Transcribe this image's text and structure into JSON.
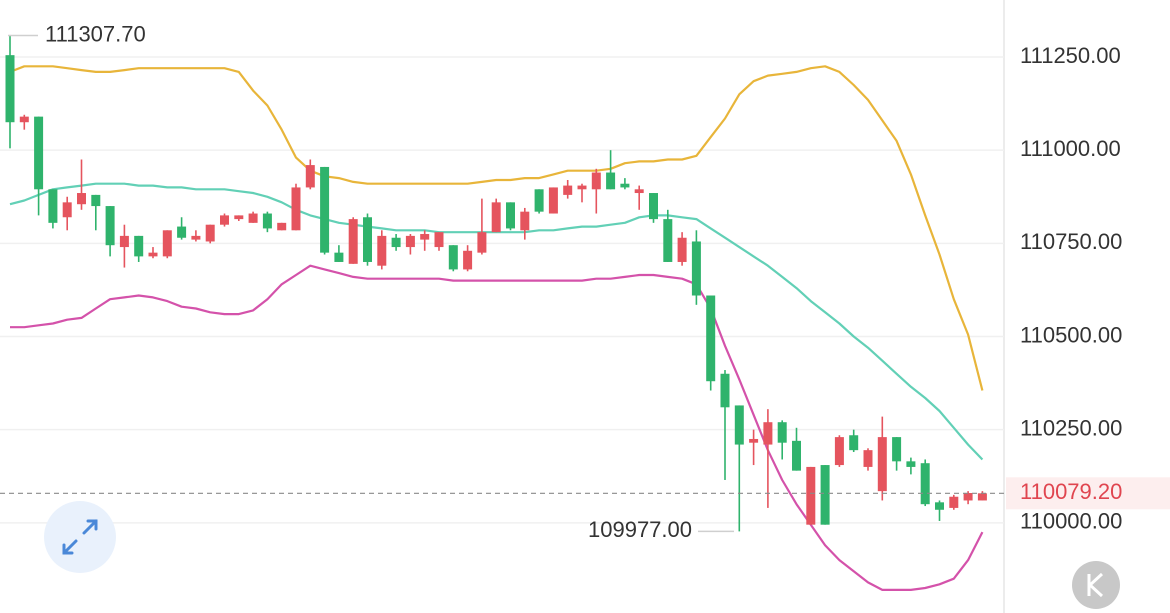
{
  "chart_data": {
    "type": "candlestick",
    "ylim": [
      109758,
      111403
    ],
    "yticks": [
      {
        "value": 110000,
        "label": "110000.00"
      },
      {
        "value": 110250,
        "label": "110250.00"
      },
      {
        "value": 110500,
        "label": "110500.00"
      },
      {
        "value": 110750,
        "label": "110750.00"
      },
      {
        "value": 111000,
        "label": "111000.00"
      },
      {
        "value": 111250,
        "label": "111250.00"
      }
    ],
    "grid": true,
    "up_color": "#e5545e",
    "down_color": "#2fb36c",
    "open": [
      111255,
      111075,
      111090,
      110895,
      110820,
      110855,
      110880,
      110850,
      110740,
      110770,
      110715,
      110715,
      110795,
      110760,
      110755,
      110800,
      110815,
      110805,
      110830,
      110785,
      110785,
      110900,
      110955,
      110725,
      110695,
      110820,
      110690,
      110765,
      110740,
      110760,
      110740,
      110745,
      110680,
      110725,
      110780,
      110860,
      110785,
      110895,
      110830,
      110880,
      110895,
      110895,
      110940,
      110910,
      110885,
      110885,
      110815,
      110700,
      110755,
      110610,
      110400,
      110315,
      110215,
      110210,
      110270,
      110220,
      109995,
      110155,
      110155,
      110235,
      110150,
      110085,
      110230,
      110165,
      110160,
      110055,
      110040,
      110060,
      110060
    ],
    "close": [
      111075,
      111090,
      110895,
      110805,
      110860,
      110885,
      110850,
      110745,
      110770,
      110715,
      110725,
      110785,
      110765,
      110770,
      110800,
      110825,
      110825,
      110830,
      110790,
      110805,
      110900,
      110960,
      110725,
      110700,
      110815,
      110700,
      110770,
      110740,
      110770,
      110775,
      110780,
      110680,
      110730,
      110780,
      110860,
      110790,
      110835,
      110835,
      110900,
      110905,
      110905,
      110940,
      110895,
      110900,
      110895,
      110815,
      110700,
      110765,
      110610,
      110380,
      110310,
      110210,
      110225,
      110270,
      110215,
      110140,
      110150,
      109995,
      110230,
      110195,
      110195,
      110230,
      110165,
      110150,
      110050,
      110035,
      110070,
      110080,
      110079.2
    ],
    "high": [
      111307.7,
      111095,
      111090,
      110895,
      110875,
      110975,
      110880,
      110850,
      110800,
      110770,
      110740,
      110785,
      110820,
      110785,
      110800,
      110830,
      110825,
      110835,
      110835,
      110805,
      110910,
      110975,
      110955,
      110745,
      110820,
      110830,
      110785,
      110775,
      110775,
      110785,
      110780,
      110745,
      110745,
      110870,
      110870,
      110860,
      110845,
      110895,
      110900,
      110920,
      110910,
      110950,
      111000,
      110925,
      110905,
      110885,
      110840,
      110780,
      110785,
      110610,
      110410,
      110315,
      110250,
      110305,
      110275,
      110255,
      110150,
      110155,
      110235,
      110250,
      110200,
      110285,
      110230,
      110175,
      110170,
      110060,
      110075,
      110085,
      110085
    ],
    "low": [
      111005,
      111055,
      110825,
      110790,
      110785,
      110840,
      110785,
      110715,
      110685,
      110700,
      110710,
      110710,
      110760,
      110755,
      110750,
      110795,
      110810,
      110805,
      110780,
      110785,
      110785,
      110895,
      110720,
      110700,
      110695,
      110690,
      110680,
      110730,
      110720,
      110730,
      110730,
      110675,
      110675,
      110720,
      110780,
      110785,
      110760,
      110830,
      110830,
      110870,
      110860,
      110830,
      110895,
      110895,
      110840,
      110805,
      110700,
      110690,
      110585,
      110355,
      110115,
      109977,
      110155,
      110040,
      110170,
      110140,
      109995,
      109995,
      110150,
      110190,
      110140,
      110060,
      110140,
      110130,
      110045,
      110005,
      110035,
      110050,
      110060
    ],
    "bands": [
      {
        "color": "#e8b53a",
        "values": [
          111210,
          111225,
          111225,
          111225,
          111220,
          111215,
          111210,
          111210,
          111215,
          111220,
          111220,
          111220,
          111220,
          111220,
          111220,
          111220,
          111210,
          111160,
          111120,
          111055,
          110980,
          110945,
          110930,
          110925,
          110915,
          110910,
          110910,
          110910,
          110910,
          110910,
          110910,
          110910,
          110910,
          110915,
          110920,
          110920,
          110925,
          110925,
          110935,
          110945,
          110945,
          110945,
          110950,
          110965,
          110970,
          110970,
          110975,
          110975,
          110985,
          111035,
          111085,
          111150,
          111185,
          111200,
          111205,
          111210,
          111220,
          111225,
          111210,
          111175,
          111135,
          111080,
          111025,
          110935,
          110825,
          110720,
          110600,
          110505,
          110355
        ]
      },
      {
        "color": "#62d0b6",
        "values": [
          110855,
          110865,
          110880,
          110895,
          110900,
          110905,
          110910,
          110910,
          110910,
          110905,
          110905,
          110900,
          110900,
          110895,
          110895,
          110895,
          110890,
          110885,
          110875,
          110860,
          110840,
          110825,
          110815,
          110805,
          110800,
          110795,
          110790,
          110785,
          110785,
          110785,
          110780,
          110780,
          110780,
          110780,
          110780,
          110780,
          110780,
          110785,
          110785,
          110790,
          110795,
          110795,
          110800,
          110805,
          110820,
          110825,
          110825,
          110820,
          110815,
          110790,
          110765,
          110740,
          110715,
          110690,
          110660,
          110630,
          110595,
          110565,
          110535,
          110500,
          110470,
          110435,
          110400,
          110365,
          110335,
          110300,
          110255,
          110210,
          110170
        ]
      },
      {
        "color": "#d452aa",
        "values": [
          110525,
          110525,
          110530,
          110535,
          110545,
          110550,
          110575,
          110600,
          110605,
          110610,
          110605,
          110595,
          110580,
          110575,
          110565,
          110560,
          110560,
          110570,
          110600,
          110640,
          110665,
          110690,
          110680,
          110670,
          110660,
          110655,
          110655,
          110655,
          110655,
          110655,
          110655,
          110650,
          110650,
          110650,
          110650,
          110650,
          110650,
          110650,
          110650,
          110650,
          110650,
          110655,
          110655,
          110660,
          110665,
          110665,
          110660,
          110655,
          110640,
          110575,
          110475,
          110385,
          110290,
          110195,
          110115,
          110050,
          109995,
          109940,
          109900,
          109870,
          109840,
          109820,
          109820,
          109820,
          109825,
          109835,
          109850,
          109900,
          109975
        ]
      }
    ],
    "annotations": {
      "high": {
        "value": 111307.7,
        "label": "111307.70"
      },
      "low": {
        "value": 109977,
        "label": "109977.00"
      },
      "last": {
        "value": 110079.2,
        "label": "110079.20"
      }
    }
  }
}
